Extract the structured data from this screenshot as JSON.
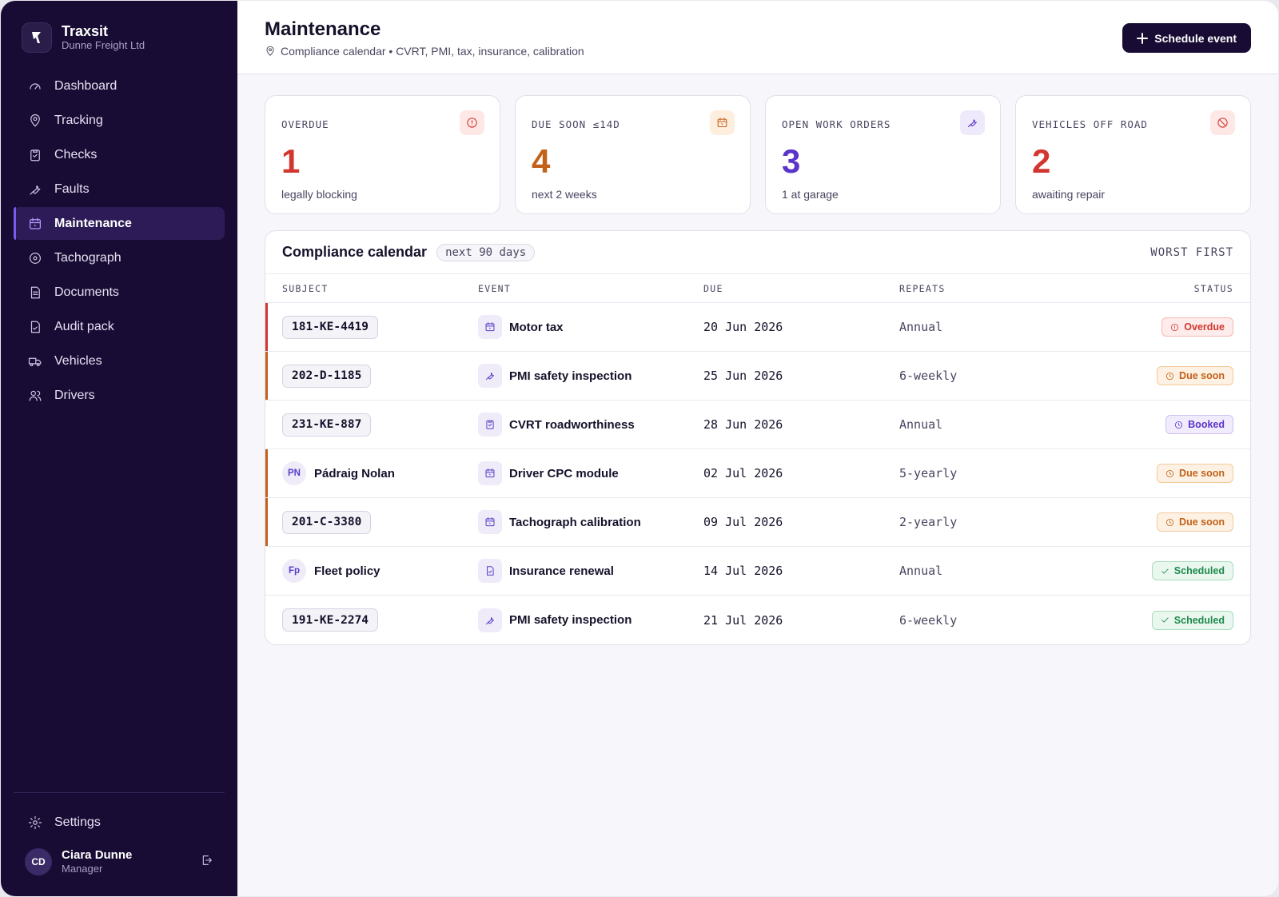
{
  "brand": {
    "name": "Traxsit",
    "subtitle": "Dunne Freight Ltd"
  },
  "nav": [
    {
      "label": "Dashboard",
      "icon": "gauge-icon",
      "active": false
    },
    {
      "label": "Tracking",
      "icon": "map-pin-icon",
      "active": false
    },
    {
      "label": "Checks",
      "icon": "clipboard-icon",
      "active": false
    },
    {
      "label": "Faults",
      "icon": "wrench-icon",
      "active": false
    },
    {
      "label": "Maintenance",
      "icon": "calendar-icon",
      "active": true
    },
    {
      "label": "Tachograph",
      "icon": "disc-icon",
      "active": false
    },
    {
      "label": "Documents",
      "icon": "document-icon",
      "active": false
    },
    {
      "label": "Audit pack",
      "icon": "file-check-icon",
      "active": false
    },
    {
      "label": "Vehicles",
      "icon": "truck-icon",
      "active": false
    },
    {
      "label": "Drivers",
      "icon": "users-icon",
      "active": false
    }
  ],
  "settings": {
    "label": "Settings",
    "icon": "gear-icon"
  },
  "user": {
    "initials": "CD",
    "name": "Ciara Dunne",
    "role": "Manager"
  },
  "header": {
    "title": "Maintenance",
    "subtitle": "Compliance calendar • CVRT, PMI, tax, insurance, calibration",
    "action_label": "Schedule event"
  },
  "kpis": [
    {
      "label": "OVERDUE",
      "value": "1",
      "note": "legally blocking",
      "color": "#d2372f",
      "icon": "alert-circle-icon",
      "icon_bg": "#fde8e6"
    },
    {
      "label": "DUE SOON ≤14D",
      "value": "4",
      "note": "next 2 weeks",
      "color": "#c2611a",
      "icon": "calendar-icon",
      "icon_bg": "#fdeedd"
    },
    {
      "label": "OPEN WORK ORDERS",
      "value": "3",
      "note": "1 at garage",
      "color": "#5b34c9",
      "icon": "wrench-icon",
      "icon_bg": "#efe9fc"
    },
    {
      "label": "VEHICLES OFF ROAD",
      "value": "2",
      "note": "awaiting repair",
      "color": "#d2372f",
      "icon": "ban-icon",
      "icon_bg": "#fde8e6"
    }
  ],
  "calendar": {
    "title": "Compliance calendar",
    "range": "next 90 days",
    "sort": "WORST FIRST",
    "columns": {
      "subject": "SUBJECT",
      "event": "EVENT",
      "due": "DUE",
      "repeats": "REPEATS",
      "status": "STATUS"
    },
    "rows": [
      {
        "subject_type": "plate",
        "subject": "181-KE-4419",
        "event": "Motor tax",
        "event_icon": "calendar-icon",
        "due": "20 Jun 2026",
        "repeats": "Annual",
        "status": "Overdue",
        "status_kind": "overdue",
        "stripe": "#d2372f"
      },
      {
        "subject_type": "plate",
        "subject": "202-D-1185",
        "event": "PMI safety inspection",
        "event_icon": "wrench-icon",
        "due": "25 Jun 2026",
        "repeats": "6-weekly",
        "status": "Due soon",
        "status_kind": "due",
        "stripe": "#c2611a"
      },
      {
        "subject_type": "plate",
        "subject": "231-KE-887",
        "event": "CVRT roadworthiness",
        "event_icon": "clipboard-icon",
        "due": "28 Jun 2026",
        "repeats": "Annual",
        "status": "Booked",
        "status_kind": "booked",
        "stripe": ""
      },
      {
        "subject_type": "person",
        "initials": "PN",
        "subject": "Pádraig Nolan",
        "event": "Driver CPC module",
        "event_icon": "calendar-icon",
        "due": "02 Jul 2026",
        "repeats": "5-yearly",
        "status": "Due soon",
        "status_kind": "due",
        "stripe": "#c2611a"
      },
      {
        "subject_type": "plate",
        "subject": "201-C-3380",
        "event": "Tachograph calibration",
        "event_icon": "calendar-icon",
        "due": "09 Jul 2026",
        "repeats": "2-yearly",
        "status": "Due soon",
        "status_kind": "due",
        "stripe": "#c2611a"
      },
      {
        "subject_type": "person",
        "initials": "Fp",
        "subject": "Fleet policy",
        "event": "Insurance renewal",
        "event_icon": "file-check-icon",
        "due": "14 Jul 2026",
        "repeats": "Annual",
        "status": "Scheduled",
        "status_kind": "scheduled",
        "stripe": ""
      },
      {
        "subject_type": "plate",
        "subject": "191-KE-2274",
        "event": "PMI safety inspection",
        "event_icon": "wrench-icon",
        "due": "21 Jul 2026",
        "repeats": "6-weekly",
        "status": "Scheduled",
        "status_kind": "scheduled",
        "stripe": ""
      }
    ]
  },
  "status_colors": {
    "overdue": {
      "fg": "#d2372f",
      "bg": "#fdeceb",
      "border": "#f3b8b3",
      "icon": "alert-circle-icon"
    },
    "due": {
      "fg": "#c2611a",
      "bg": "#fdf1e3",
      "border": "#f2c99a",
      "icon": "clock-icon"
    },
    "booked": {
      "fg": "#5b34c9",
      "bg": "#f1ecfd",
      "border": "#cfc0f5",
      "icon": "clock-icon"
    },
    "scheduled": {
      "fg": "#1f8a4c",
      "bg": "#e9f7ef",
      "border": "#a9dcbd",
      "icon": "check-icon"
    }
  }
}
